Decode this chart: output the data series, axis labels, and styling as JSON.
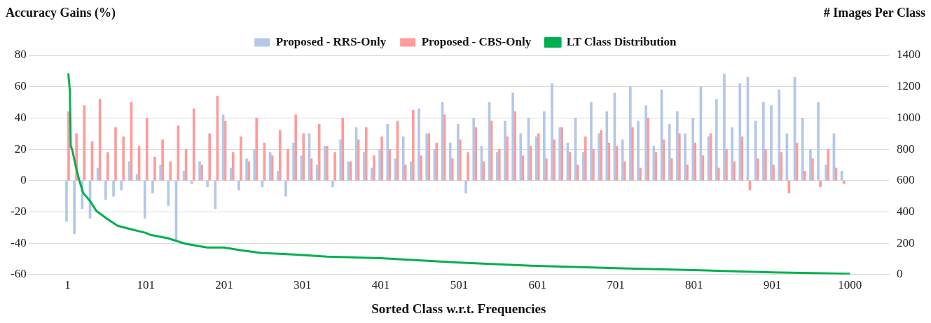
{
  "chart_data": {
    "type": "bar",
    "xlabel": "Sorted Class w.r.t. Frequencies",
    "ylabel": "Accuracy Gains (%)",
    "y2label": "# Images Per Class",
    "x": [
      1,
      11,
      21,
      31,
      41,
      51,
      61,
      71,
      81,
      91,
      101,
      111,
      121,
      131,
      141,
      151,
      161,
      171,
      181,
      191,
      201,
      211,
      221,
      231,
      241,
      251,
      261,
      271,
      281,
      291,
      301,
      311,
      321,
      331,
      341,
      351,
      361,
      371,
      381,
      391,
      401,
      411,
      421,
      431,
      441,
      451,
      461,
      471,
      481,
      491,
      501,
      511,
      521,
      531,
      541,
      551,
      561,
      571,
      581,
      591,
      601,
      611,
      621,
      631,
      641,
      651,
      661,
      671,
      681,
      691,
      701,
      711,
      721,
      731,
      741,
      751,
      761,
      771,
      781,
      791,
      801,
      811,
      821,
      831,
      841,
      851,
      861,
      871,
      881,
      891,
      901,
      911,
      921,
      931,
      941,
      951,
      961,
      971,
      981,
      991
    ],
    "series": [
      {
        "name": "Proposed - RRS-Only",
        "color": "#b4c7e7",
        "values": [
          -26,
          -34,
          -18,
          -24,
          8,
          -12,
          -10,
          -6,
          12,
          4,
          -24,
          -8,
          10,
          -16,
          -38,
          6,
          -2,
          12,
          -4,
          -18,
          42,
          8,
          -6,
          14,
          20,
          -4,
          18,
          6,
          -10,
          24,
          16,
          30,
          10,
          22,
          -4,
          26,
          12,
          34,
          18,
          8,
          20,
          36,
          14,
          28,
          12,
          46,
          30,
          20,
          50,
          24,
          36,
          -8,
          40,
          22,
          50,
          18,
          38,
          56,
          30,
          40,
          28,
          44,
          62,
          34,
          24,
          40,
          18,
          50,
          30,
          44,
          56,
          26,
          60,
          38,
          48,
          22,
          58,
          36,
          44,
          30,
          40,
          60,
          28,
          52,
          68,
          34,
          62,
          66,
          38,
          50,
          48,
          58,
          30,
          66,
          40,
          20,
          50,
          10,
          30,
          6
        ]
      },
      {
        "name": "Proposed - CBS-Only",
        "color": "#ff9b9b",
        "values": [
          44,
          30,
          48,
          25,
          52,
          18,
          34,
          28,
          50,
          22,
          40,
          15,
          26,
          12,
          35,
          20,
          46,
          10,
          30,
          54,
          38,
          18,
          28,
          12,
          40,
          24,
          16,
          32,
          20,
          42,
          30,
          14,
          36,
          22,
          18,
          40,
          12,
          26,
          34,
          16,
          28,
          20,
          38,
          10,
          45,
          16,
          30,
          24,
          42,
          14,
          26,
          18,
          34,
          12,
          38,
          20,
          28,
          44,
          16,
          22,
          30,
          14,
          26,
          34,
          18,
          10,
          28,
          20,
          32,
          24,
          22,
          12,
          34,
          8,
          40,
          18,
          26,
          14,
          30,
          10,
          24,
          16,
          30,
          8,
          20,
          12,
          28,
          -6,
          14,
          20,
          10,
          18,
          -8,
          24,
          6,
          14,
          -4,
          20,
          8,
          -2
        ]
      },
      {
        "name": "LT Class Distribution",
        "type": "line",
        "axis": "y2",
        "color": "#00b050",
        "x": [
          1,
          2,
          4,
          5,
          7,
          12,
          16,
          21,
          29,
          38,
          51,
          65,
          84,
          101,
          107,
          129,
          151,
          179,
          201,
          221,
          248,
          290,
          332,
          401,
          501,
          601,
          701,
          801,
          901,
          1000
        ],
        "values": [
          1280,
          1280,
          1166,
          820,
          795,
          680,
          600,
          520,
          474,
          405,
          357,
          311,
          287,
          266,
          253,
          232,
          197,
          173,
          173,
          156,
          138,
          128,
          114,
          104,
          76,
          55,
          41,
          28,
          14,
          5
        ]
      }
    ],
    "xlim": [
      1,
      1000
    ],
    "xticks": [
      1,
      101,
      201,
      301,
      401,
      501,
      601,
      701,
      801,
      901,
      1000
    ],
    "ylim": [
      -60,
      80
    ],
    "yticks": [
      -60,
      -40,
      -20,
      0,
      20,
      40,
      60,
      80
    ],
    "y2lim": [
      0,
      1400
    ],
    "y2ticks": [
      0,
      200,
      400,
      600,
      800,
      1000,
      1200,
      1400
    ],
    "grid": "y",
    "legend": "top"
  }
}
